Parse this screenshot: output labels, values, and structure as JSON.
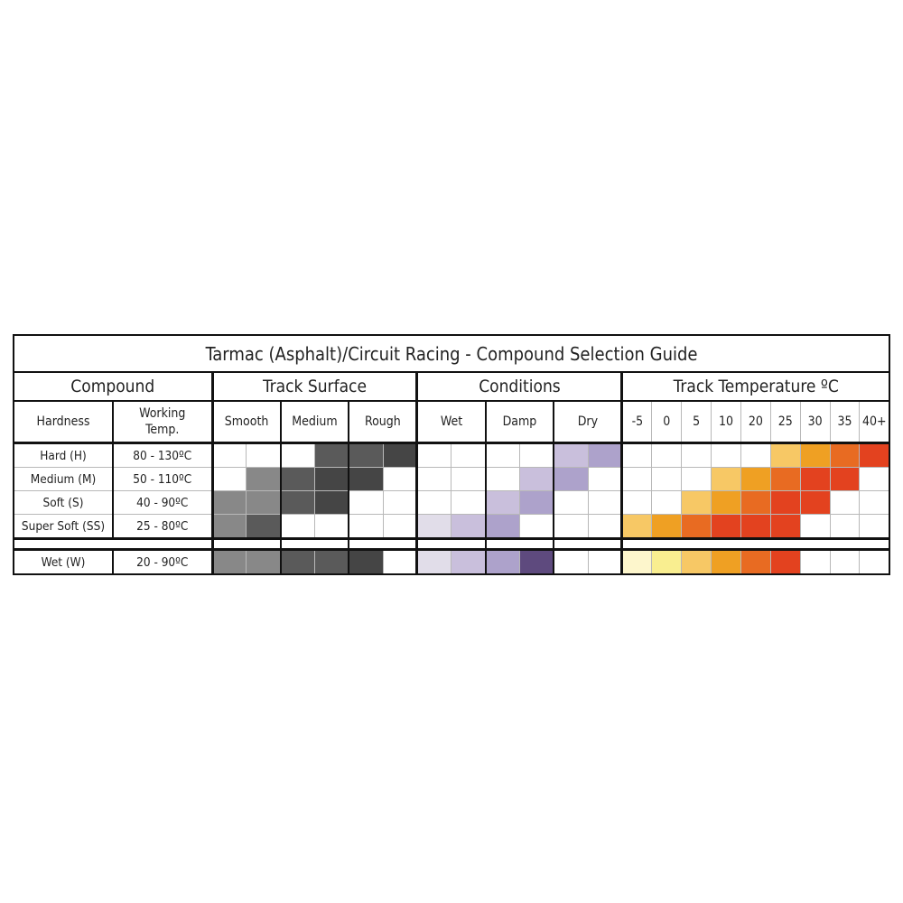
{
  "chart_data": {
    "type": "table",
    "title": "Tarmac (Asphalt)/Circuit Racing - Compound Selection Guide",
    "groups": [
      "Compound",
      "Track Surface",
      "Conditions",
      "Track Temperature ºC"
    ],
    "compound_headers": [
      "Hardness",
      "Working",
      "Temp."
    ],
    "surface_headers": [
      "Smooth",
      "Medium",
      "Rough"
    ],
    "condition_headers": [
      "Wet",
      "Damp",
      "Dry"
    ],
    "temperature_headers": [
      "-5",
      "0",
      "5",
      "10",
      "20",
      "25",
      "30",
      "35",
      "40+"
    ],
    "palettes": {
      "surface": [
        "#ffffff",
        "#888888",
        "#5a5a5a",
        "#454545"
      ],
      "conditions": [
        "#ffffff",
        "#e1dde9",
        "#c9bfdc",
        "#ada2cb",
        "#5e4a7e"
      ],
      "temperature": [
        "#ffffff",
        "#fdf6cc",
        "#f9ee90",
        "#f7c865",
        "#efa023",
        "#e86b22",
        "#e3421f"
      ]
    },
    "rows": [
      {
        "hardness": "Hard (H)",
        "temp": "80 - 130ºC",
        "surface": [
          0,
          0,
          0,
          2,
          2,
          3
        ],
        "conditions": [
          0,
          0,
          0,
          0,
          2,
          3
        ],
        "temperature": [
          0,
          0,
          0,
          0,
          0,
          3,
          4,
          5,
          6
        ]
      },
      {
        "hardness": "Medium (M)",
        "temp": "50 - 110ºC",
        "surface": [
          0,
          1,
          2,
          3,
          3,
          0
        ],
        "conditions": [
          0,
          0,
          0,
          2,
          3,
          0
        ],
        "temperature": [
          0,
          0,
          0,
          3,
          4,
          5,
          6,
          6,
          0
        ]
      },
      {
        "hardness": "Soft (S)",
        "temp": "40 - 90ºC",
        "surface": [
          1,
          1,
          2,
          3,
          0,
          0
        ],
        "conditions": [
          0,
          0,
          2,
          3,
          0,
          0
        ],
        "temperature": [
          0,
          0,
          3,
          4,
          5,
          6,
          6,
          0,
          0
        ]
      },
      {
        "hardness": "Super Soft (SS)",
        "temp": "25 - 80ºC",
        "surface": [
          1,
          2,
          0,
          0,
          0,
          0
        ],
        "conditions": [
          1,
          2,
          3,
          0,
          0,
          0
        ],
        "temperature": [
          3,
          4,
          5,
          6,
          6,
          6,
          0,
          0,
          0
        ]
      }
    ],
    "wet_row": {
      "hardness": "Wet (W)",
      "temp": "20 - 90ºC",
      "surface": [
        1,
        1,
        2,
        2,
        3,
        0
      ],
      "conditions": [
        1,
        2,
        3,
        4,
        0,
        0
      ],
      "temperature": [
        1,
        2,
        3,
        4,
        5,
        6,
        0,
        0,
        0
      ]
    }
  }
}
